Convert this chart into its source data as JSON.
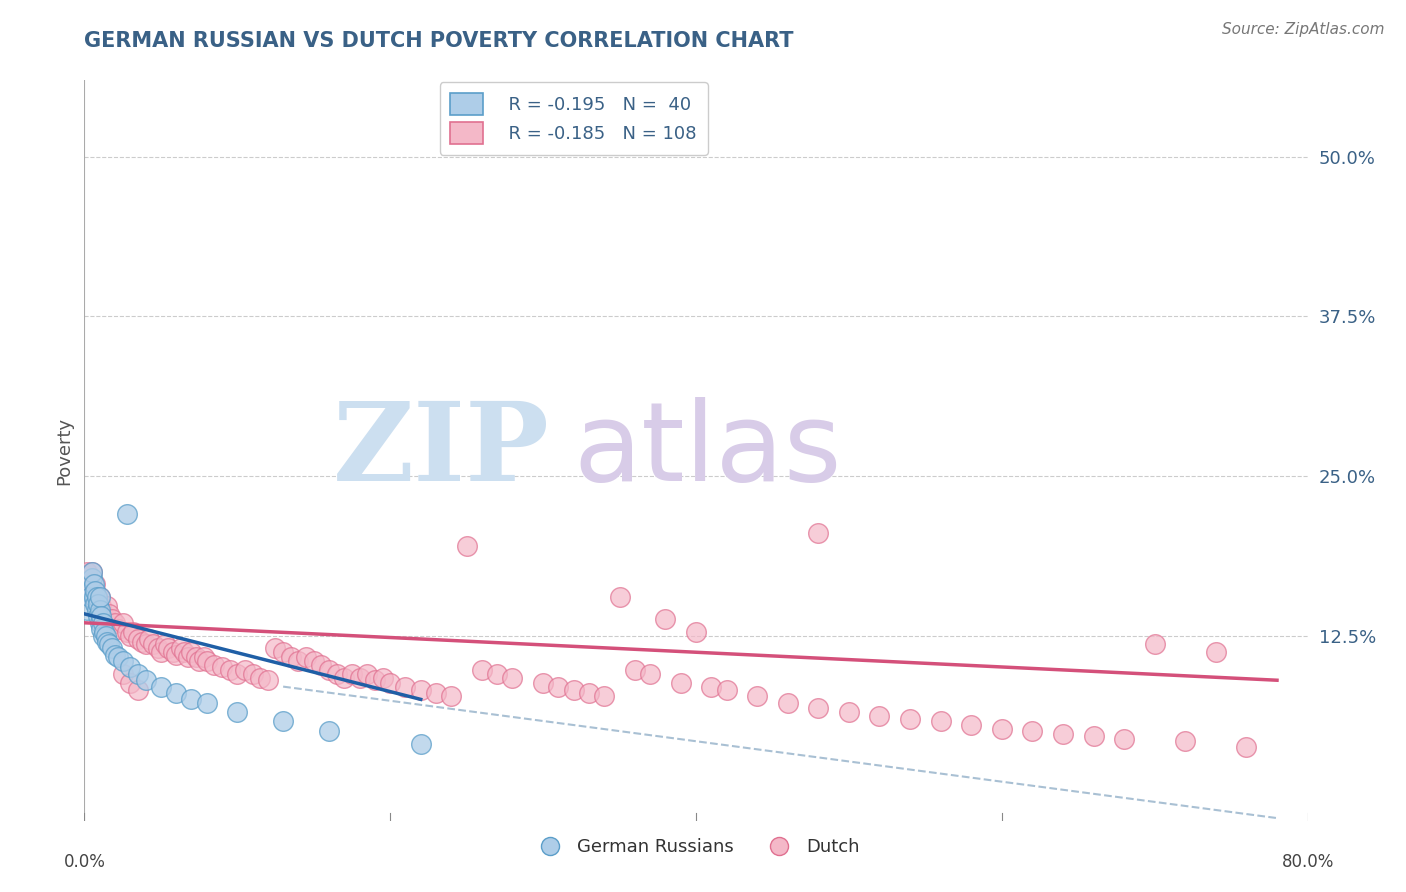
{
  "title": "GERMAN RUSSIAN VS DUTCH POVERTY CORRELATION CHART",
  "source": "Source: ZipAtlas.com",
  "ylabel": "Poverty",
  "yticks": [
    0.125,
    0.25,
    0.375,
    0.5
  ],
  "ytick_labels": [
    "12.5%",
    "25.0%",
    "37.5%",
    "50.0%"
  ],
  "xlim": [
    0.0,
    0.8
  ],
  "ylim": [
    -0.02,
    0.56
  ],
  "legend_r1": "R = -0.195",
  "legend_n1": "N =  40",
  "legend_r2": "R = -0.185",
  "legend_n2": "N = 108",
  "color_blue_fill": "#aecde8",
  "color_blue_edge": "#5b9ec9",
  "color_pink_fill": "#f4b8c8",
  "color_pink_edge": "#e07090",
  "color_blue_line": "#1f5fa6",
  "color_pink_line": "#d4507a",
  "color_dashed": "#9ab5cc",
  "background_color": "#ffffff",
  "title_color": "#3a6186",
  "axis_color": "#3a6186",
  "source_color": "#777777",
  "ylabel_color": "#555555",
  "watermark_zip_color": "#ccdff0",
  "watermark_atlas_color": "#d8cce8",
  "german_russians_x": [
    0.002,
    0.003,
    0.004,
    0.005,
    0.005,
    0.006,
    0.006,
    0.007,
    0.007,
    0.008,
    0.008,
    0.009,
    0.009,
    0.01,
    0.01,
    0.01,
    0.011,
    0.011,
    0.012,
    0.012,
    0.013,
    0.014,
    0.015,
    0.016,
    0.018,
    0.02,
    0.022,
    0.025,
    0.028,
    0.03,
    0.035,
    0.04,
    0.05,
    0.06,
    0.07,
    0.08,
    0.1,
    0.13,
    0.16,
    0.22
  ],
  "german_russians_y": [
    0.145,
    0.16,
    0.155,
    0.17,
    0.175,
    0.155,
    0.165,
    0.15,
    0.16,
    0.145,
    0.155,
    0.15,
    0.14,
    0.135,
    0.145,
    0.155,
    0.14,
    0.13,
    0.135,
    0.125,
    0.128,
    0.125,
    0.12,
    0.118,
    0.115,
    0.11,
    0.108,
    0.105,
    0.22,
    0.1,
    0.095,
    0.09,
    0.085,
    0.08,
    0.075,
    0.072,
    0.065,
    0.058,
    0.05,
    0.04
  ],
  "dutch_x": [
    0.002,
    0.003,
    0.004,
    0.005,
    0.005,
    0.006,
    0.007,
    0.008,
    0.009,
    0.01,
    0.01,
    0.011,
    0.012,
    0.013,
    0.015,
    0.016,
    0.018,
    0.02,
    0.022,
    0.025,
    0.028,
    0.03,
    0.032,
    0.035,
    0.038,
    0.04,
    0.042,
    0.045,
    0.048,
    0.05,
    0.053,
    0.055,
    0.058,
    0.06,
    0.063,
    0.065,
    0.068,
    0.07,
    0.073,
    0.075,
    0.078,
    0.08,
    0.085,
    0.09,
    0.095,
    0.1,
    0.105,
    0.11,
    0.115,
    0.12,
    0.125,
    0.13,
    0.135,
    0.14,
    0.145,
    0.15,
    0.155,
    0.16,
    0.165,
    0.17,
    0.175,
    0.18,
    0.185,
    0.19,
    0.195,
    0.2,
    0.21,
    0.22,
    0.23,
    0.24,
    0.25,
    0.26,
    0.27,
    0.28,
    0.3,
    0.31,
    0.32,
    0.33,
    0.34,
    0.35,
    0.36,
    0.37,
    0.38,
    0.39,
    0.4,
    0.41,
    0.42,
    0.44,
    0.46,
    0.48,
    0.5,
    0.52,
    0.54,
    0.56,
    0.58,
    0.6,
    0.62,
    0.64,
    0.66,
    0.68,
    0.7,
    0.72,
    0.74,
    0.76,
    0.025,
    0.03,
    0.035,
    0.48
  ],
  "dutch_y": [
    0.175,
    0.165,
    0.16,
    0.155,
    0.175,
    0.16,
    0.165,
    0.155,
    0.15,
    0.145,
    0.155,
    0.148,
    0.142,
    0.138,
    0.148,
    0.142,
    0.138,
    0.135,
    0.13,
    0.135,
    0.128,
    0.125,
    0.128,
    0.122,
    0.12,
    0.118,
    0.122,
    0.118,
    0.115,
    0.112,
    0.118,
    0.115,
    0.112,
    0.11,
    0.115,
    0.112,
    0.108,
    0.112,
    0.108,
    0.105,
    0.108,
    0.105,
    0.102,
    0.1,
    0.098,
    0.095,
    0.098,
    0.095,
    0.092,
    0.09,
    0.115,
    0.112,
    0.108,
    0.105,
    0.108,
    0.105,
    0.102,
    0.098,
    0.095,
    0.092,
    0.095,
    0.092,
    0.095,
    0.09,
    0.092,
    0.088,
    0.085,
    0.082,
    0.08,
    0.078,
    0.195,
    0.098,
    0.095,
    0.092,
    0.088,
    0.085,
    0.082,
    0.08,
    0.078,
    0.155,
    0.098,
    0.095,
    0.138,
    0.088,
    0.128,
    0.085,
    0.082,
    0.078,
    0.072,
    0.068,
    0.065,
    0.062,
    0.06,
    0.058,
    0.055,
    0.052,
    0.05,
    0.048,
    0.046,
    0.044,
    0.118,
    0.042,
    0.112,
    0.038,
    0.095,
    0.088,
    0.082,
    0.205
  ],
  "blue_line_x0": 0.0,
  "blue_line_y0": 0.142,
  "blue_line_x1": 0.22,
  "blue_line_y1": 0.075,
  "pink_line_x0": 0.0,
  "pink_line_y0": 0.135,
  "pink_line_x1": 0.78,
  "pink_line_y1": 0.09,
  "dash_line_x0": 0.13,
  "dash_line_y0": 0.085,
  "dash_line_x1": 0.78,
  "dash_line_y1": -0.018
}
